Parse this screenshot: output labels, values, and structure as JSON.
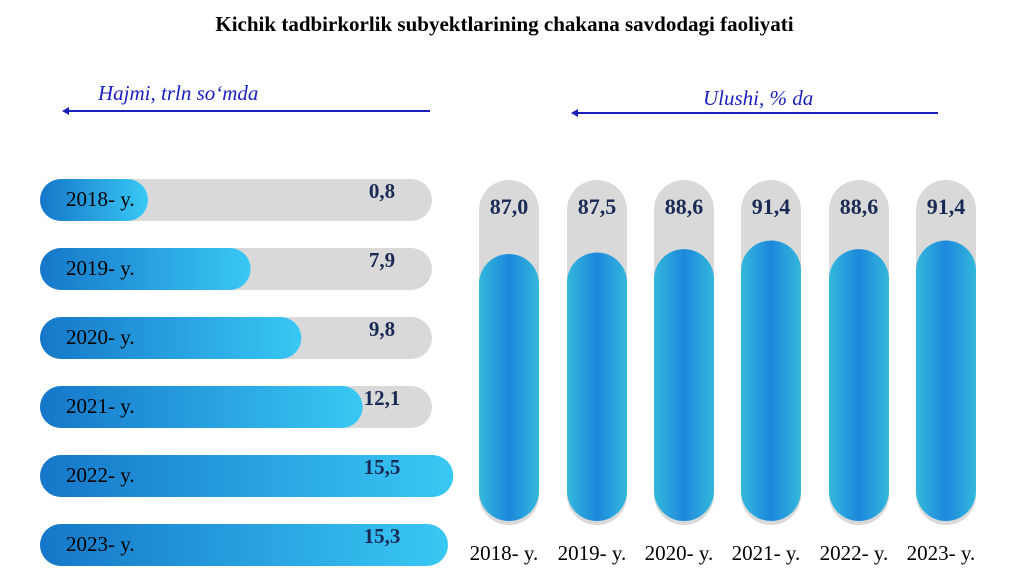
{
  "chart_data": [
    {
      "type": "bar",
      "orientation": "horizontal",
      "title": "Kichik tadbirkorlik subyektlarining chakana savdodagi faoliyati",
      "series_label": "Hajmi, trln so‘mda",
      "categories": [
        "2018- y.",
        "2019- y.",
        "2020- y.",
        "2021- y.",
        "2022- y.",
        "2023- y."
      ],
      "values": [
        0.8,
        7.9,
        9.8,
        12.1,
        15.5,
        15.3
      ],
      "value_labels": [
        "0,8",
        "7,9",
        "9,8",
        "12,1",
        "15,5",
        "15,3"
      ],
      "colors": {
        "fill_dark": "#1577c9",
        "fill_light": "#39c8f4",
        "track": "#d9d9d9"
      }
    },
    {
      "type": "bar",
      "orientation": "vertical",
      "series_label": "Ulushi, % da",
      "categories": [
        "2018- y.",
        "2019- y.",
        "2020- y.",
        "2021- y.",
        "2022- y.",
        "2023- y."
      ],
      "values": [
        87.0,
        87.5,
        88.6,
        91.4,
        88.6,
        91.4
      ],
      "value_labels": [
        "87,0",
        "87,5",
        "88,6",
        "91,4",
        "88,6",
        "91,4"
      ],
      "colors": {
        "fill_edge": "#33b8dc",
        "fill_center": "#1e88dc",
        "track": "#d9d9d9"
      }
    }
  ],
  "accent_color": "#1a1fbf"
}
